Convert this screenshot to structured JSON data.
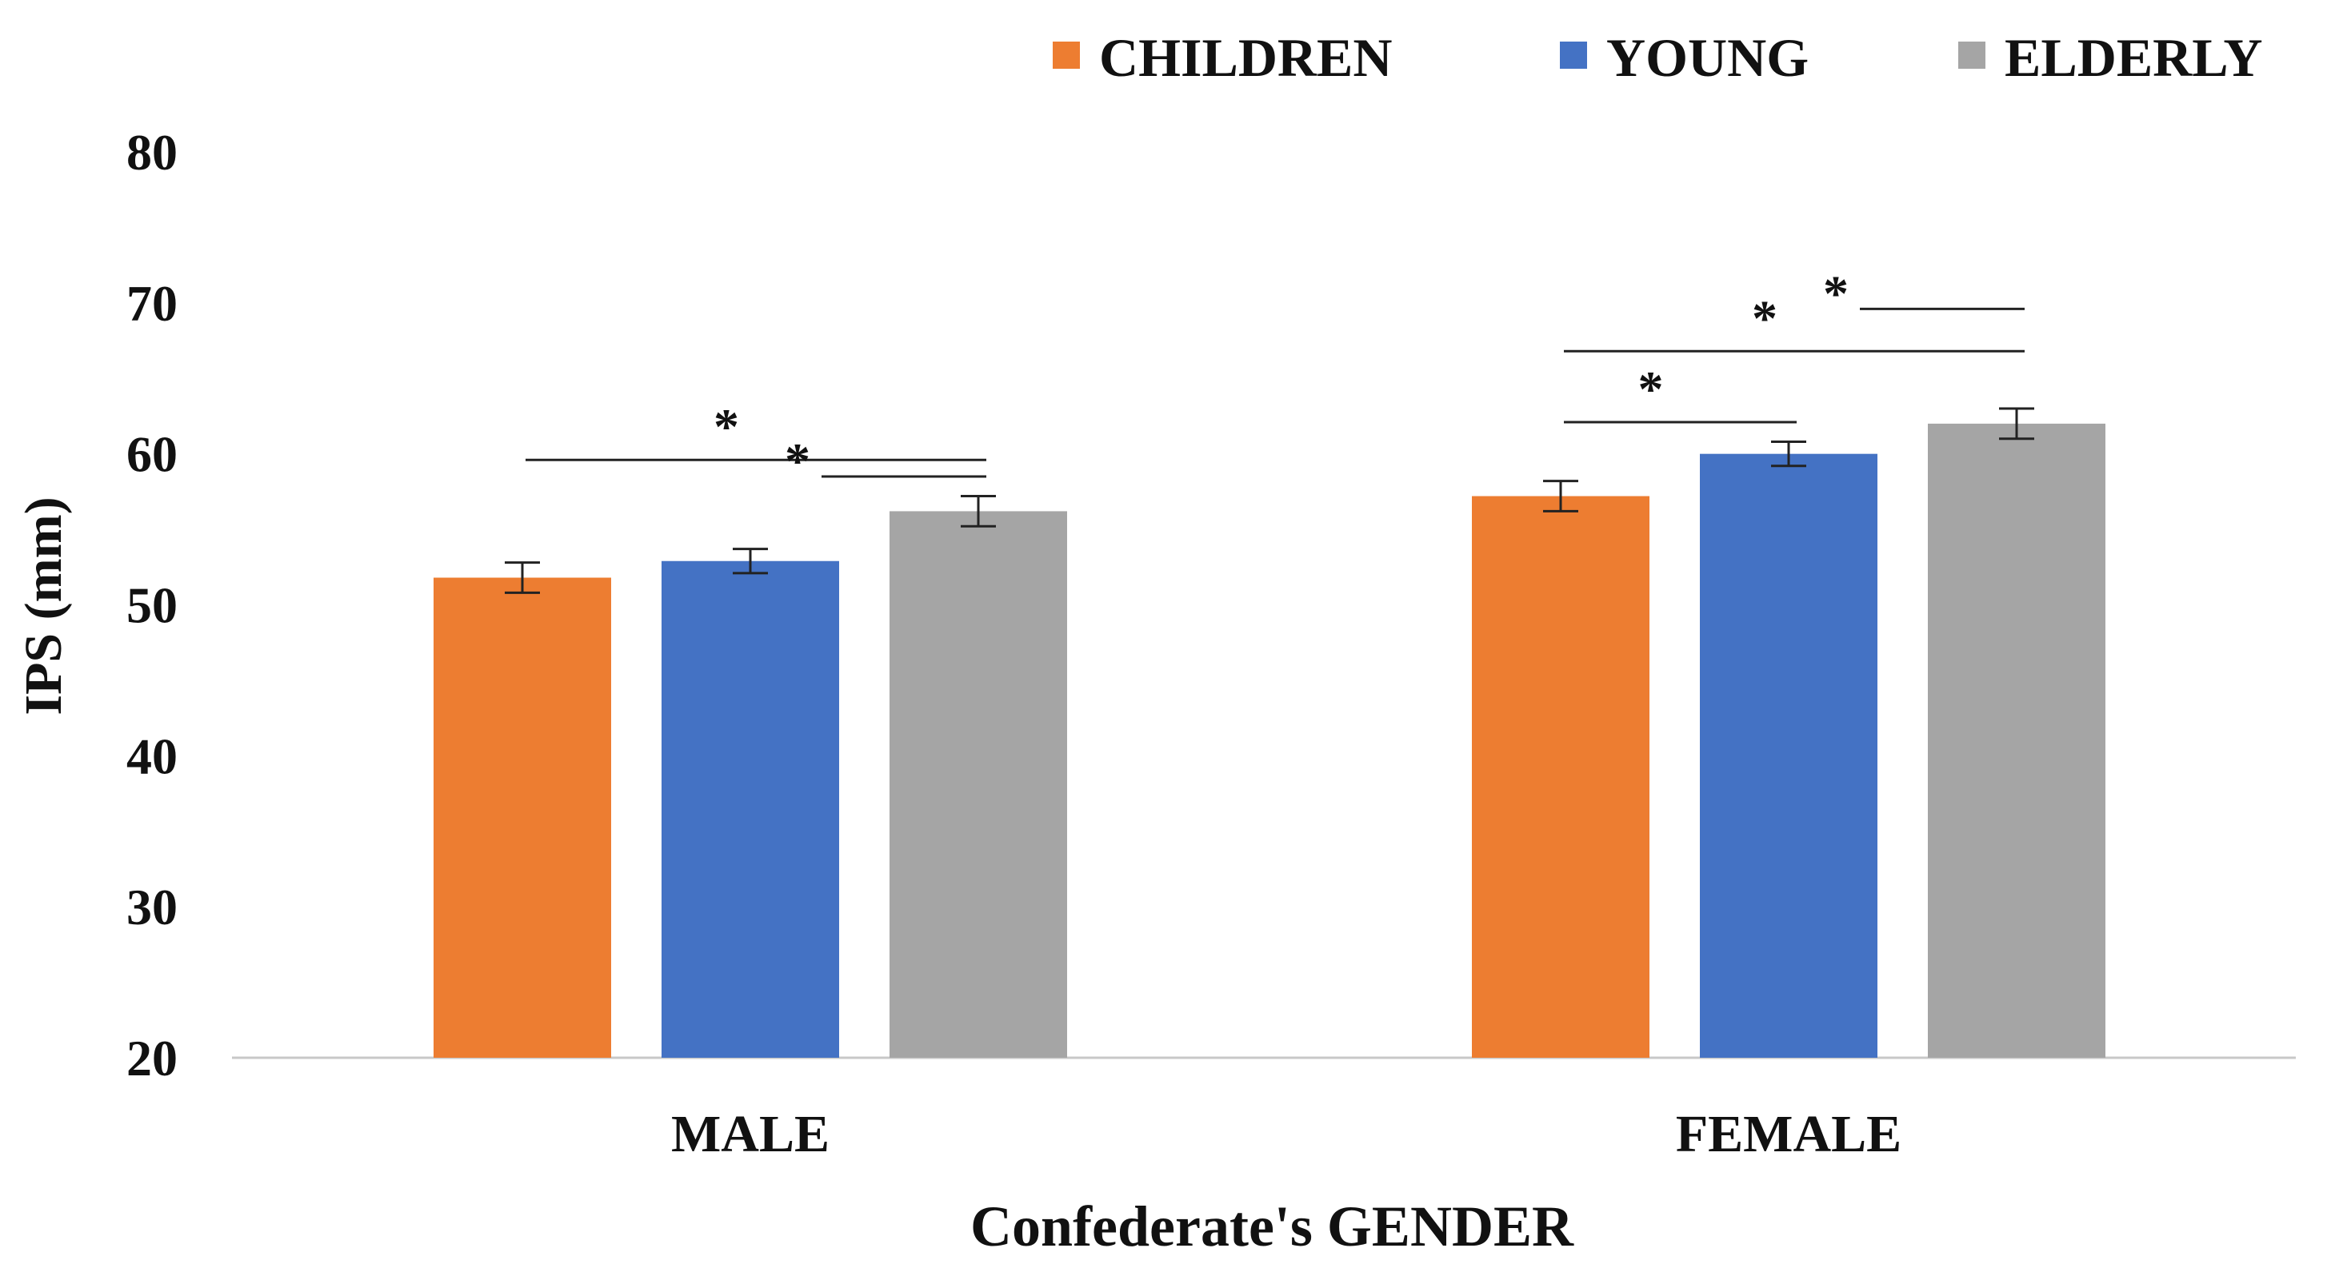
{
  "chart_data": {
    "type": "bar",
    "title": "",
    "categories": [
      "MALE",
      "FEMALE"
    ],
    "series": [
      {
        "name": "CHILDREN",
        "color": "#ED7D31",
        "values": [
          51.8,
          57.2
        ],
        "errors": [
          1.0,
          1.0
        ]
      },
      {
        "name": "YOUNG",
        "color": "#4472C4",
        "values": [
          52.9,
          60.0
        ],
        "errors": [
          0.8,
          0.8
        ]
      },
      {
        "name": "ELDERLY",
        "color": "#A5A5A5",
        "values": [
          56.2,
          62.0
        ],
        "errors": [
          1.0,
          1.0
        ]
      }
    ],
    "xlabel": "Confederate's GENDER",
    "ylabel": "IPS (mm)",
    "ylim": [
      20,
      80
    ],
    "yticks": [
      20,
      30,
      40,
      50,
      60,
      70,
      80
    ],
    "grid": false,
    "legend_position": "top-right",
    "significance": [
      {
        "category": "MALE",
        "from": "CHILDREN",
        "to": "ELDERLY",
        "label": "*"
      },
      {
        "category": "MALE",
        "from": "YOUNG",
        "to": "ELDERLY",
        "label": "*"
      },
      {
        "category": "FEMALE",
        "from": "CHILDREN",
        "to": "YOUNG",
        "label": "*"
      },
      {
        "category": "FEMALE",
        "from": "CHILDREN",
        "to": "ELDERLY",
        "label": "*"
      },
      {
        "category": "FEMALE",
        "from": "YOUNG",
        "to": "ELDERLY",
        "label": "*"
      }
    ]
  }
}
